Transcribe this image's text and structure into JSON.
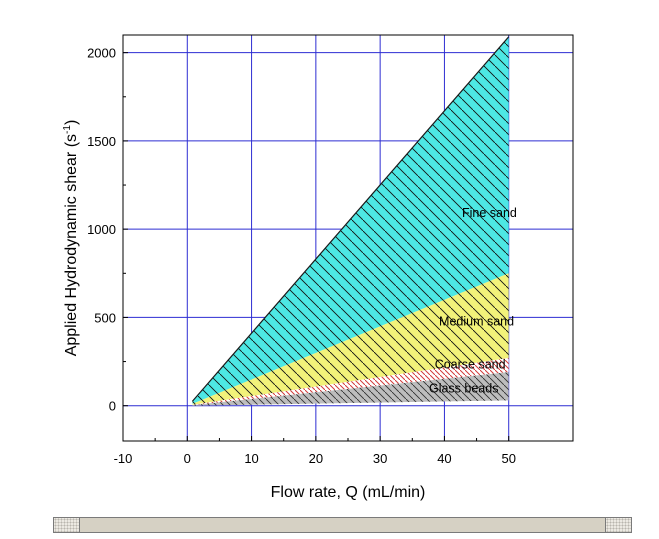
{
  "chart_data": {
    "type": "area",
    "xlabel": "Flow rate, Q (mL/min)",
    "ylabel": "Applied Hydrodynamic shear (s",
    "ylabel_superscript": "-1",
    "ylabel_suffix": ")",
    "xlim": [
      -10,
      60
    ],
    "ylim": [
      -200,
      2100
    ],
    "x_ticks": [
      -10,
      0,
      10,
      20,
      30,
      40,
      50
    ],
    "y_ticks": [
      0,
      500,
      1000,
      1500,
      2000
    ],
    "grid": true,
    "regions": [
      {
        "name": "Fine sand",
        "x": [
          0.8,
          50
        ],
        "upper": [
          25,
          2090
        ],
        "lower": [
          10,
          750
        ],
        "color": "#4de8e4"
      },
      {
        "name": "Medium sand",
        "x": [
          0.8,
          50
        ],
        "upper": [
          10,
          750
        ],
        "lower": [
          5,
          270
        ],
        "color": "#f2f27a"
      },
      {
        "name": "Coarse sand",
        "x": [
          0.8,
          50
        ],
        "upper": [
          5,
          270
        ],
        "lower": [
          3,
          190
        ],
        "color": "#ffffff"
      },
      {
        "name": "Glass beads",
        "x": [
          0.8,
          50
        ],
        "upper": [
          3,
          190
        ],
        "lower": [
          0,
          30
        ],
        "color": "#bdbdbd"
      }
    ]
  },
  "colors": {
    "grid": "#2d2dd2",
    "axis": "#000000"
  }
}
